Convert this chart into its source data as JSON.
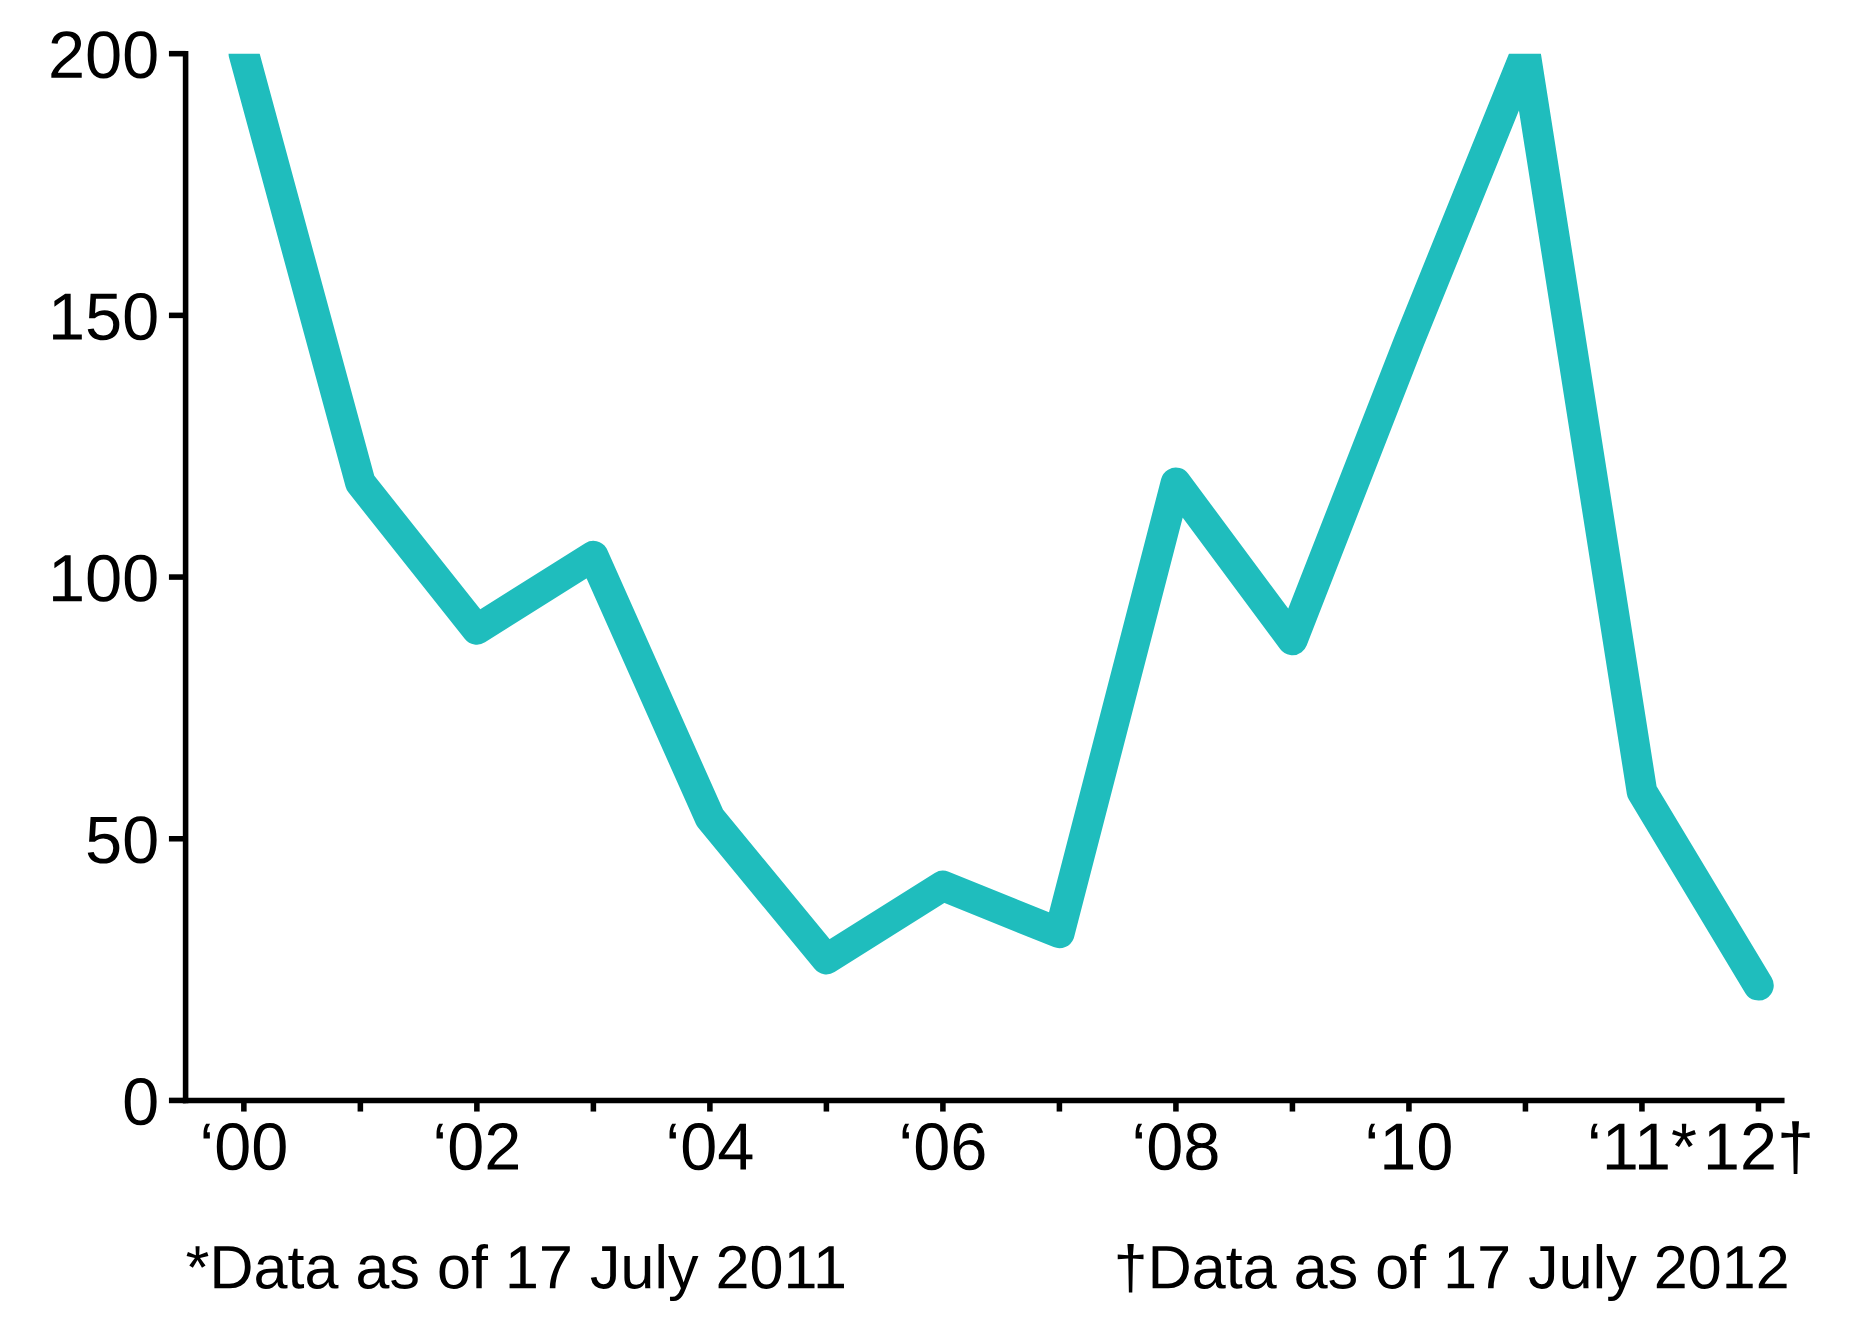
{
  "chart_data": {
    "type": "line",
    "categories": [
      "‘00",
      null,
      "‘02",
      null,
      "‘04",
      null,
      "‘06",
      null,
      "‘08",
      null,
      "‘10",
      null,
      "‘11*",
      "12†"
    ],
    "series": [
      {
        "color": "#1fbdbd",
        "values": [
          200,
          118,
          90,
          104,
          54,
          27,
          41,
          32,
          118,
          88,
          145,
          200,
          59,
          22
        ]
      }
    ],
    "ylim": [
      0,
      200
    ],
    "yticks": [
      0,
      50,
      100,
      150,
      200
    ],
    "grid": false,
    "legend": false,
    "marker": "none",
    "line_style": "solid",
    "annotations": [
      "*Data as of 17 July 2011",
      "†Data as of 17 July 2012"
    ]
  }
}
